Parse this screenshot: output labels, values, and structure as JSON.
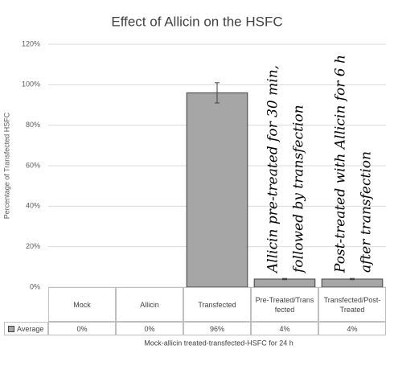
{
  "chart_data": {
    "type": "bar",
    "title": "Effect of Allicin on the HSFC",
    "y_label": "Percentage of Transfected HSFC",
    "x_label": "Mock-allicin treated-transfected-HSFC for 24 h",
    "categories": [
      "Mock",
      "Allicin",
      "Transfected",
      "Pre-Treated/Transfected",
      "Transfected/Post-Treated"
    ],
    "series": [
      {
        "name": "Average",
        "color": "#a6a6a6",
        "values": [
          0,
          0,
          96,
          4,
          4
        ],
        "value_labels": [
          "0%",
          "0%",
          "96%",
          "4%",
          "4%"
        ],
        "errors": [
          null,
          null,
          5,
          0.3,
          0.3
        ]
      }
    ],
    "ylim": [
      0,
      120
    ],
    "yticks": [
      {
        "value": 0,
        "label": "0%"
      },
      {
        "value": 20,
        "label": "20%"
      },
      {
        "value": 40,
        "label": "40%"
      },
      {
        "value": 60,
        "label": "60%"
      },
      {
        "value": 80,
        "label": "80%"
      },
      {
        "value": 100,
        "label": "100%"
      },
      {
        "value": 120,
        "label": "120%"
      }
    ],
    "grid": true,
    "annotations": [
      [
        "Allicin pre-treated for 30 min,",
        "followed by transfection"
      ],
      [
        "Post-treated with Allicin for 6 h",
        "after transfection"
      ]
    ]
  }
}
